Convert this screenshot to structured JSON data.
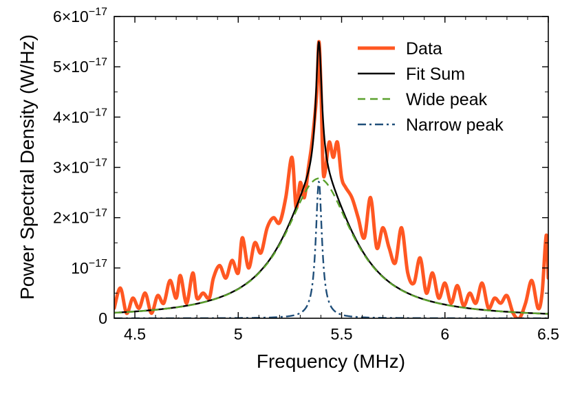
{
  "chart_data": {
    "type": "line",
    "title": "",
    "xlabel": "Frequency (MHz)",
    "ylabel": "Power Spectral Density (W/Hz)",
    "xlim": [
      4.4,
      6.5
    ],
    "ylim": [
      0,
      6e-17
    ],
    "grid": false,
    "legend_position": "top-right",
    "x_ticks": [
      {
        "value": 4.5,
        "label": "4.5"
      },
      {
        "value": 5.0,
        "label": "5"
      },
      {
        "value": 5.5,
        "label": "5.5"
      },
      {
        "value": 6.0,
        "label": "6"
      },
      {
        "value": 6.5,
        "label": "6.5"
      }
    ],
    "y_ticks": [
      {
        "value": 0,
        "base": "0",
        "exp": ""
      },
      {
        "value": 1e-17,
        "base": "10",
        "exp": "−17"
      },
      {
        "value": 2e-17,
        "base": "2×10",
        "exp": "−17"
      },
      {
        "value": 3e-17,
        "base": "3×10",
        "exp": "−17"
      },
      {
        "value": 4e-17,
        "base": "4×10",
        "exp": "−17"
      },
      {
        "value": 5e-17,
        "base": "5×10",
        "exp": "−17"
      },
      {
        "value": 6e-17,
        "base": "6×10",
        "exp": "−17"
      }
    ],
    "series": [
      {
        "name": "Data",
        "kind": "data",
        "color": "#ff5722",
        "style": "solid",
        "x": [
          4.4,
          4.43,
          4.46,
          4.49,
          4.52,
          4.55,
          4.58,
          4.61,
          4.64,
          4.67,
          4.7,
          4.72,
          4.75,
          4.78,
          4.8,
          4.83,
          4.86,
          4.88,
          4.91,
          4.94,
          4.97,
          5.0,
          5.02,
          5.05,
          5.08,
          5.11,
          5.14,
          5.17,
          5.2,
          5.23,
          5.26,
          5.28,
          5.3,
          5.32,
          5.34,
          5.36,
          5.38,
          5.39,
          5.4,
          5.41,
          5.42,
          5.44,
          5.46,
          5.48,
          5.5,
          5.52,
          5.55,
          5.58,
          5.61,
          5.64,
          5.67,
          5.7,
          5.73,
          5.76,
          5.79,
          5.82,
          5.85,
          5.88,
          5.91,
          5.94,
          5.97,
          6.0,
          6.03,
          6.06,
          6.09,
          6.12,
          6.15,
          6.18,
          6.21,
          6.24,
          6.27,
          6.3,
          6.33,
          6.36,
          6.39,
          6.42,
          6.45,
          6.47,
          6.49,
          6.5
        ],
        "values": [
          2e-18,
          6e-18,
          1e-18,
          4e-18,
          2e-18,
          5e-18,
          1e-18,
          4.5e-18,
          3e-18,
          7.5e-18,
          4e-18,
          8.5e-18,
          3e-18,
          9e-18,
          4e-18,
          5e-18,
          4e-18,
          8e-18,
          1.05e-17,
          8e-18,
          1.15e-17,
          9e-18,
          1.6e-17,
          1e-17,
          1.5e-17,
          1.3e-17,
          1.8e-17,
          2e-17,
          1.9e-17,
          2.4e-17,
          3.2e-17,
          2.2e-17,
          2.7e-17,
          2.4e-17,
          3e-17,
          3.6e-17,
          4.5e-17,
          5.5e-17,
          4.6e-17,
          3e-17,
          2.9e-17,
          3.5e-17,
          3.2e-17,
          3.5e-17,
          2.8e-17,
          2.6e-17,
          2.4e-17,
          2e-17,
          1.6e-17,
          2.4e-17,
          1.4e-17,
          1.8e-17,
          1.4e-17,
          1.1e-17,
          1.8e-17,
          9e-18,
          7e-18,
          1.2e-17,
          5e-18,
          9e-18,
          4e-18,
          7e-18,
          3e-18,
          6.5e-18,
          2.5e-18,
          5e-18,
          3e-18,
          7e-18,
          2e-18,
          4e-18,
          3e-18,
          4.5e-18,
          1e-18,
          0.0,
          3e-18,
          7.5e-18,
          2e-18,
          5e-18,
          1.65e-17,
          8e-18
        ]
      },
      {
        "name": "Fit Sum",
        "kind": "lorentz_sum",
        "color": "#000000",
        "style": "solid",
        "components": [
          {
            "center": 5.39,
            "hwhm": 0.2,
            "amplitude": 2.78e-17
          },
          {
            "center": 5.39,
            "hwhm": 0.018,
            "amplitude": 2.72e-17
          }
        ]
      },
      {
        "name": "Wide peak",
        "kind": "lorentz",
        "color": "#5aa02c",
        "style": "dashed",
        "center": 5.39,
        "hwhm": 0.2,
        "amplitude": 2.78e-17
      },
      {
        "name": "Narrow peak",
        "kind": "lorentz",
        "color": "#1f4e79",
        "style": "dashdot",
        "center": 5.39,
        "hwhm": 0.018,
        "amplitude": 2.72e-17
      }
    ]
  }
}
